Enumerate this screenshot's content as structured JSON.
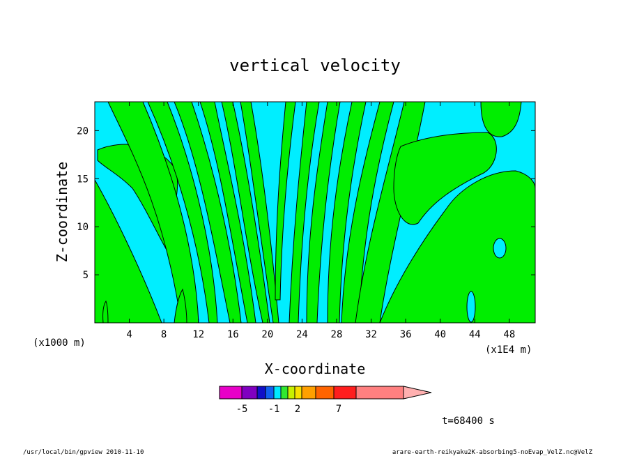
{
  "chart_data": {
    "type": "heatmap",
    "title": "vertical velocity",
    "xlabel": "X-coordinate",
    "ylabel": "Z-coordinate",
    "xlim": [
      0,
      51
    ],
    "ylim": [
      0,
      23
    ],
    "x_ticks": [
      "4",
      "8",
      "12",
      "16",
      "20",
      "24",
      "28",
      "32",
      "36",
      "40",
      "44",
      "48"
    ],
    "y_ticks": [
      "5",
      "10",
      "15",
      "20"
    ],
    "x_unit_left": "(x1000 m)",
    "x_unit_right": "(x1E4 m)",
    "colorbar": {
      "labels": [
        "-5",
        "-1",
        "2",
        "7"
      ],
      "colors": [
        "#e800c8",
        "#8000c0",
        "#1010c8",
        "#1060f0",
        "#00e8ff",
        "#30e830",
        "#c8f000",
        "#f8e000",
        "#ffa000",
        "#ff6400",
        "#ff1e1e",
        "#ff8080",
        "#ffb0b0"
      ]
    },
    "fill_colors": {
      "negative": "#00eeff",
      "positive": "#00ee00"
    },
    "time_label": "t=68400 s"
  },
  "footer": {
    "left": "/usr/local/bin/gpview  2010-11-10",
    "right": "arare-earth-reikyaku2K-absorbing5-noEvap_VelZ.nc@VelZ"
  }
}
